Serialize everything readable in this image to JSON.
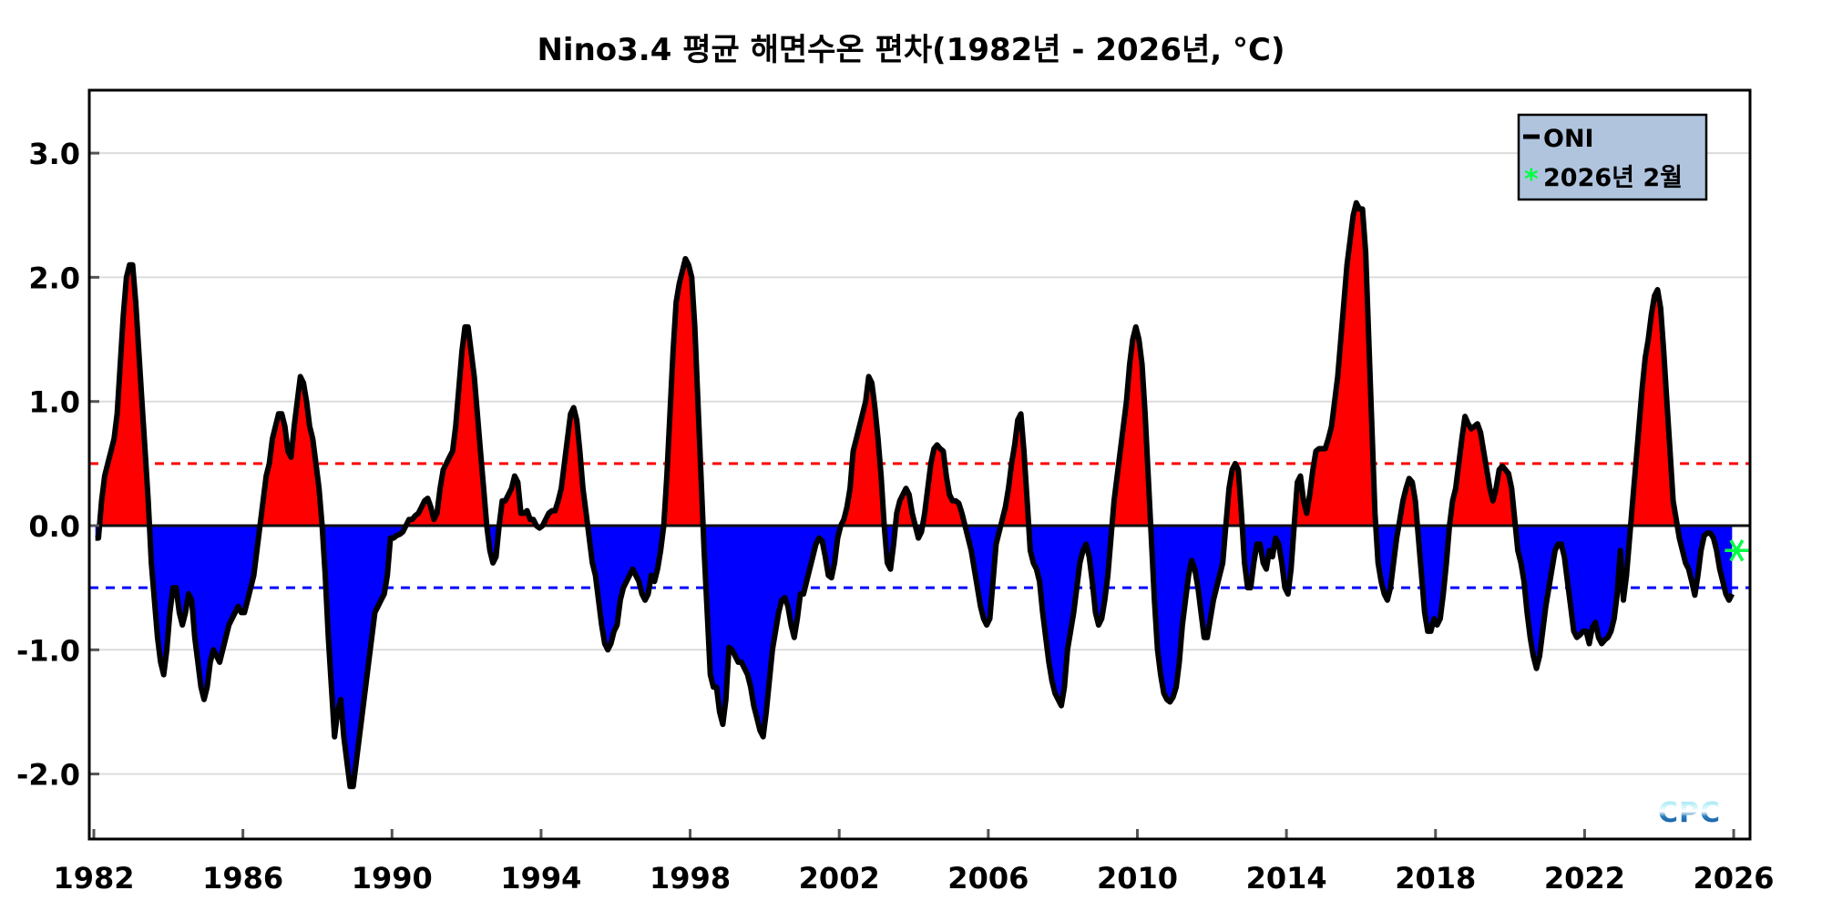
{
  "chart_data": {
    "type": "area",
    "title": "Nino3.4 평균 해면수온 편차(1982년 - 2026년, °C)",
    "xlabel": "",
    "ylabel": "",
    "xlim": [
      1982,
      2026.4
    ],
    "ylim": [
      -2.5,
      3.5
    ],
    "x_ticks": [
      "1982",
      "1986",
      "1990",
      "1994",
      "1998",
      "2002",
      "2006",
      "2010",
      "2014",
      "2018",
      "2022",
      "2026"
    ],
    "y_ticks": [
      "-2.0",
      "-1.0",
      "0.0",
      "1.0",
      "2.0",
      "3.0"
    ],
    "y_tick_values": [
      -2,
      -1,
      0,
      1,
      2,
      3
    ],
    "grid": true,
    "thresholds": [
      {
        "value": 0.5,
        "color": "#ff0000",
        "style": "dashed"
      },
      {
        "value": -0.5,
        "color": "#0000ff",
        "style": "dashed"
      }
    ],
    "fill_colors": {
      "positive": "#ff0000",
      "negative": "#0000ff"
    },
    "legend": {
      "position": "top-right",
      "background": "#b0c4de",
      "entries": [
        {
          "label": "ONI",
          "marker": "line",
          "color": "#000000"
        },
        {
          "label": "2026년 2월",
          "marker": "asterisk",
          "color": "#00ff44"
        }
      ]
    },
    "series": [
      {
        "name": "ONI",
        "frequency": "monthly",
        "color": "#000000",
        "data": [
          {
            "year": 1982,
            "values": [
              -0.1,
              -0.1,
              0.2,
              0.4,
              0.5,
              0.6,
              0.7,
              0.9,
              1.3,
              1.7,
              2.0,
              2.1
            ]
          },
          {
            "year": 1983,
            "values": [
              2.1,
              1.8,
              1.4,
              1.0,
              0.6,
              0.2,
              -0.3,
              -0.6,
              -0.9,
              -1.1,
              -1.2,
              -1.0
            ]
          },
          {
            "year": 1984,
            "values": [
              -0.7,
              -0.5,
              -0.5,
              -0.7,
              -0.8,
              -0.7,
              -0.55,
              -0.6,
              -0.9,
              -1.1,
              -1.3,
              -1.4
            ]
          },
          {
            "year": 1985,
            "values": [
              -1.3,
              -1.1,
              -1.0,
              -1.05,
              -1.1,
              -1.0,
              -0.9,
              -0.8,
              -0.75,
              -0.7,
              -0.65,
              -0.7
            ]
          },
          {
            "year": 1986,
            "values": [
              -0.7,
              -0.6,
              -0.5,
              -0.4,
              -0.2,
              0.0,
              0.2,
              0.4,
              0.5,
              0.7,
              0.8,
              0.9
            ]
          },
          {
            "year": 1987,
            "values": [
              0.9,
              0.8,
              0.6,
              0.55,
              0.8,
              1.0,
              1.2,
              1.15,
              1.0,
              0.8,
              0.7,
              0.5
            ]
          },
          {
            "year": 1988,
            "values": [
              0.3,
              0.0,
              -0.4,
              -0.9,
              -1.3,
              -1.7,
              -1.5,
              -1.4,
              -1.7,
              -1.9,
              -2.1,
              -2.1
            ]
          },
          {
            "year": 1989,
            "values": [
              -1.9,
              -1.7,
              -1.5,
              -1.3,
              -1.1,
              -0.9,
              -0.7,
              -0.65,
              -0.6,
              -0.55,
              -0.4,
              -0.1
            ]
          },
          {
            "year": 1990,
            "values": [
              -0.1,
              -0.08,
              -0.07,
              -0.05,
              0.0,
              0.05,
              0.05,
              0.08,
              0.1,
              0.15,
              0.2,
              0.22
            ]
          },
          {
            "year": 1991,
            "values": [
              0.15,
              0.05,
              0.1,
              0.3,
              0.45,
              0.5,
              0.55,
              0.6,
              0.8,
              1.1,
              1.4,
              1.6
            ]
          },
          {
            "year": 1992,
            "values": [
              1.6,
              1.4,
              1.2,
              0.9,
              0.6,
              0.3,
              0.0,
              -0.2,
              -0.3,
              -0.25,
              0.0,
              0.2
            ]
          },
          {
            "year": 1993,
            "values": [
              0.2,
              0.25,
              0.3,
              0.4,
              0.35,
              0.1,
              0.1,
              0.12,
              0.05,
              0.05,
              0.0,
              -0.02
            ]
          },
          {
            "year": 1994,
            "values": [
              0.0,
              0.05,
              0.1,
              0.12,
              0.12,
              0.2,
              0.3,
              0.5,
              0.7,
              0.9,
              0.95,
              0.85
            ]
          },
          {
            "year": 1995,
            "values": [
              0.6,
              0.3,
              0.1,
              -0.1,
              -0.3,
              -0.4,
              -0.6,
              -0.8,
              -0.95,
              -1.0,
              -0.95,
              -0.85
            ]
          },
          {
            "year": 1996,
            "values": [
              -0.8,
              -0.6,
              -0.5,
              -0.45,
              -0.4,
              -0.35,
              -0.4,
              -0.45,
              -0.55,
              -0.6,
              -0.55,
              -0.4
            ]
          },
          {
            "year": 1997,
            "values": [
              -0.45,
              -0.35,
              -0.2,
              0.0,
              0.4,
              0.9,
              1.4,
              1.8,
              1.95,
              2.05,
              2.15,
              2.1
            ]
          },
          {
            "year": 1998,
            "values": [
              2.0,
              1.6,
              1.0,
              0.4,
              -0.2,
              -0.7,
              -1.2,
              -1.3,
              -1.3,
              -1.5,
              -1.6,
              -1.4
            ]
          },
          {
            "year": 1999,
            "values": [
              -0.98,
              -1.0,
              -1.05,
              -1.1,
              -1.1,
              -1.15,
              -1.2,
              -1.3,
              -1.45,
              -1.55,
              -1.65,
              -1.7
            ]
          },
          {
            "year": 2000,
            "values": [
              -1.5,
              -1.25,
              -1.0,
              -0.85,
              -0.7,
              -0.6,
              -0.58,
              -0.65,
              -0.8,
              -0.9,
              -0.75,
              -0.55
            ]
          },
          {
            "year": 2001,
            "values": [
              -0.55,
              -0.45,
              -0.35,
              -0.25,
              -0.15,
              -0.1,
              -0.12,
              -0.25,
              -0.4,
              -0.42,
              -0.3,
              -0.1
            ]
          },
          {
            "year": 2002,
            "values": [
              0.0,
              0.05,
              0.15,
              0.3,
              0.6,
              0.7,
              0.8,
              0.9,
              1.0,
              1.2,
              1.15,
              0.95
            ]
          },
          {
            "year": 2003,
            "values": [
              0.7,
              0.4,
              0.0,
              -0.3,
              -0.35,
              -0.15,
              0.1,
              0.2,
              0.25,
              0.3,
              0.25,
              0.1
            ]
          },
          {
            "year": 2004,
            "values": [
              0.0,
              -0.1,
              -0.05,
              0.1,
              0.3,
              0.5,
              0.62,
              0.65,
              0.62,
              0.6,
              0.4,
              0.25
            ]
          },
          {
            "year": 2005,
            "values": [
              0.2,
              0.2,
              0.18,
              0.1,
              0.0,
              -0.1,
              -0.2,
              -0.35,
              -0.5,
              -0.65,
              -0.75,
              -0.8
            ]
          },
          {
            "year": 2006,
            "values": [
              -0.75,
              -0.45,
              -0.15,
              -0.05,
              0.05,
              0.15,
              0.3,
              0.5,
              0.65,
              0.85,
              0.9,
              0.6
            ]
          },
          {
            "year": 2007,
            "values": [
              0.2,
              -0.2,
              -0.3,
              -0.35,
              -0.45,
              -0.7,
              -0.9,
              -1.1,
              -1.25,
              -1.35,
              -1.4,
              -1.45
            ]
          },
          {
            "year": 2008,
            "values": [
              -1.3,
              -1.0,
              -0.85,
              -0.7,
              -0.5,
              -0.3,
              -0.2,
              -0.15,
              -0.25,
              -0.45,
              -0.7,
              -0.8
            ]
          },
          {
            "year": 2009,
            "values": [
              -0.75,
              -0.6,
              -0.4,
              -0.1,
              0.2,
              0.4,
              0.6,
              0.8,
              1.0,
              1.3,
              1.5,
              1.6
            ]
          },
          {
            "year": 2010,
            "values": [
              1.5,
              1.3,
              0.9,
              0.4,
              -0.1,
              -0.6,
              -1.0,
              -1.2,
              -1.35,
              -1.4,
              -1.42,
              -1.38
            ]
          },
          {
            "year": 2011,
            "values": [
              -1.3,
              -1.1,
              -0.8,
              -0.6,
              -0.4,
              -0.28,
              -0.35,
              -0.5,
              -0.7,
              -0.9,
              -0.9,
              -0.75
            ]
          },
          {
            "year": 2012,
            "values": [
              -0.6,
              -0.5,
              -0.4,
              -0.3,
              0.0,
              0.3,
              0.45,
              0.5,
              0.45,
              0.1,
              -0.3,
              -0.5
            ]
          },
          {
            "year": 2013,
            "values": [
              -0.5,
              -0.3,
              -0.15,
              -0.15,
              -0.3,
              -0.35,
              -0.2,
              -0.25,
              -0.1,
              -0.15,
              -0.3,
              -0.5
            ]
          },
          {
            "year": 2014,
            "values": [
              -0.55,
              -0.35,
              0.0,
              0.35,
              0.4,
              0.2,
              0.1,
              0.25,
              0.45,
              0.6,
              0.62,
              0.62
            ]
          },
          {
            "year": 2015,
            "values": [
              0.62,
              0.7,
              0.8,
              1.0,
              1.2,
              1.5,
              1.8,
              2.1,
              2.3,
              2.5,
              2.6,
              2.55
            ]
          },
          {
            "year": 2016,
            "values": [
              2.55,
              2.2,
              1.5,
              0.8,
              0.1,
              -0.3,
              -0.45,
              -0.55,
              -0.6,
              -0.5,
              -0.3,
              -0.1
            ]
          },
          {
            "year": 2017,
            "values": [
              0.05,
              0.2,
              0.3,
              0.38,
              0.35,
              0.2,
              -0.1,
              -0.4,
              -0.7,
              -0.85,
              -0.85,
              -0.75
            ]
          },
          {
            "year": 2018,
            "values": [
              -0.8,
              -0.75,
              -0.55,
              -0.3,
              0.0,
              0.2,
              0.3,
              0.5,
              0.7,
              0.88,
              0.82,
              0.78
            ]
          },
          {
            "year": 2019,
            "values": [
              0.8,
              0.82,
              0.75,
              0.6,
              0.45,
              0.3,
              0.2,
              0.3,
              0.45,
              0.48,
              0.45,
              0.42
            ]
          },
          {
            "year": 2020,
            "values": [
              0.3,
              0.05,
              -0.2,
              -0.3,
              -0.45,
              -0.7,
              -0.9,
              -1.05,
              -1.15,
              -1.05,
              -0.85,
              -0.65
            ]
          },
          {
            "year": 2021,
            "values": [
              -0.5,
              -0.35,
              -0.2,
              -0.15,
              -0.15,
              -0.25,
              -0.45,
              -0.65,
              -0.85,
              -0.9,
              -0.88,
              -0.85
            ]
          },
          {
            "year": 2022,
            "values": [
              -0.85,
              -0.95,
              -0.82,
              -0.78,
              -0.9,
              -0.95,
              -0.92,
              -0.9,
              -0.85,
              -0.75,
              -0.55,
              -0.2
            ]
          },
          {
            "year": 2023,
            "values": [
              -0.6,
              -0.4,
              -0.1,
              0.2,
              0.5,
              0.8,
              1.1,
              1.35,
              1.5,
              1.7,
              1.85,
              1.9
            ]
          },
          {
            "year": 2024,
            "values": [
              1.75,
              1.4,
              1.0,
              0.6,
              0.2,
              0.05,
              -0.1,
              -0.2,
              -0.3,
              -0.35,
              -0.45,
              -0.56
            ]
          },
          {
            "year": 2025,
            "values": [
              -0.4,
              -0.2,
              -0.08,
              -0.06,
              -0.06,
              -0.1,
              -0.2,
              -0.35,
              -0.45,
              -0.55,
              -0.6,
              -0.55
            ]
          }
        ]
      }
    ],
    "highlight_point": {
      "label": "2026년 2월",
      "year": 2026,
      "month": 2,
      "value": -0.2,
      "color": "#00ff44"
    },
    "logo": "CPC"
  }
}
